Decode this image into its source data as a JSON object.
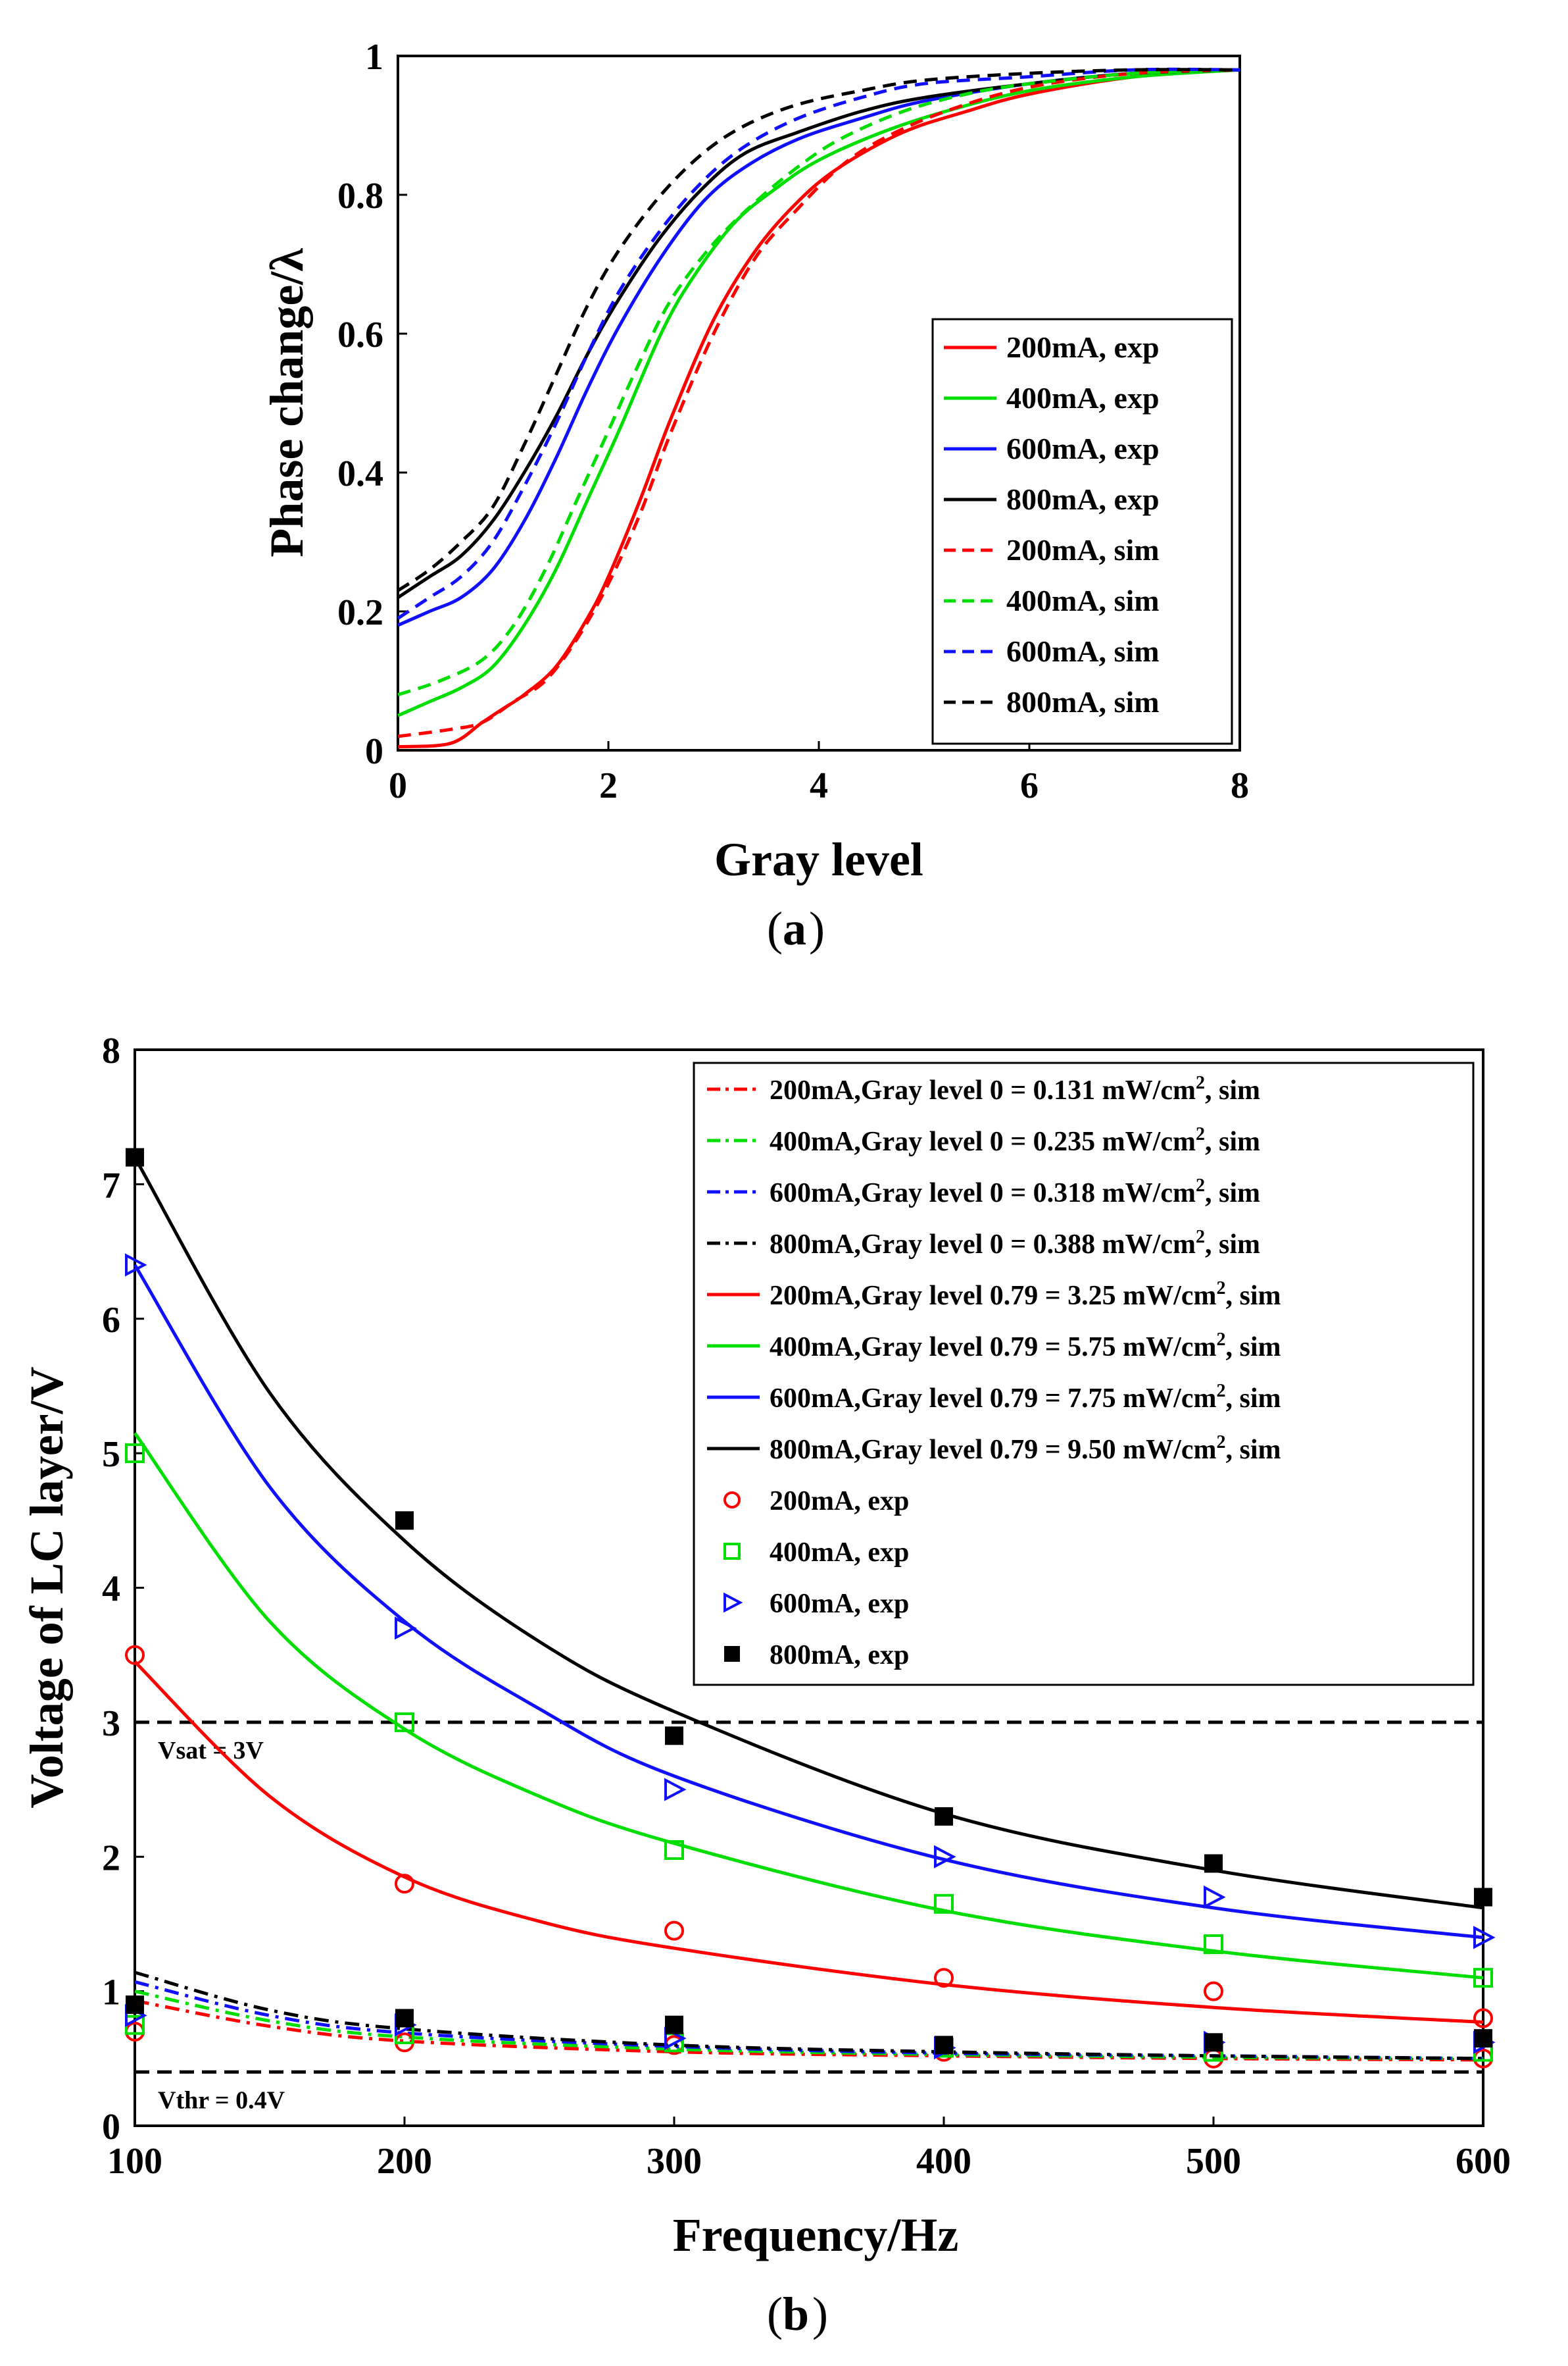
{
  "chart_data": [
    {
      "id": "a",
      "type": "line",
      "caption": "(a)",
      "caption_letter": "a",
      "xlabel": "Gray level",
      "ylabel": "Phase change/λ",
      "xlim": [
        0,
        8
      ],
      "ylim": [
        0,
        1
      ],
      "xticks": [
        "0",
        "2",
        "4",
        "6",
        "8"
      ],
      "yticks": [
        "0",
        "0.2",
        "0.4",
        "0.6",
        "0.8",
        "1"
      ],
      "legend_position": "lower-right",
      "series": [
        {
          "name": "200mA, exp",
          "color": "#ff0000",
          "style": "solid",
          "x": [
            0,
            0.5,
            0.8,
            1.0,
            1.2,
            1.5,
            1.8,
            2.0,
            2.3,
            2.6,
            3.0,
            3.4,
            3.8,
            4.2,
            4.8,
            5.4,
            6.0,
            7.0,
            8.0
          ],
          "y": [
            0.005,
            0.01,
            0.04,
            0.06,
            0.08,
            0.12,
            0.19,
            0.25,
            0.36,
            0.48,
            0.62,
            0.72,
            0.79,
            0.84,
            0.89,
            0.92,
            0.945,
            0.97,
            0.98
          ]
        },
        {
          "name": "400mA, exp",
          "color": "#00dd00",
          "style": "solid",
          "x": [
            0,
            0.3,
            0.6,
            0.9,
            1.2,
            1.5,
            1.8,
            2.1,
            2.5,
            2.8,
            3.2,
            3.6,
            4.0,
            4.6,
            5.2,
            6.0,
            7.0,
            8.0
          ],
          "y": [
            0.05,
            0.07,
            0.09,
            0.12,
            0.18,
            0.26,
            0.36,
            0.46,
            0.6,
            0.68,
            0.76,
            0.81,
            0.85,
            0.89,
            0.92,
            0.95,
            0.97,
            0.98
          ]
        },
        {
          "name": "600mA, exp",
          "color": "#1010ff",
          "style": "solid",
          "x": [
            0,
            0.3,
            0.6,
            0.9,
            1.2,
            1.5,
            1.8,
            2.1,
            2.5,
            2.9,
            3.3,
            3.8,
            4.4,
            5.0,
            6.0,
            7.0,
            8.0
          ],
          "y": [
            0.18,
            0.2,
            0.22,
            0.26,
            0.33,
            0.42,
            0.52,
            0.61,
            0.71,
            0.79,
            0.84,
            0.88,
            0.91,
            0.935,
            0.96,
            0.975,
            0.98
          ]
        },
        {
          "name": "800mA, exp",
          "color": "#000000",
          "style": "solid",
          "x": [
            0,
            0.3,
            0.6,
            0.9,
            1.2,
            1.5,
            1.8,
            2.1,
            2.5,
            2.9,
            3.3,
            3.8,
            4.4,
            5.0,
            6.0,
            7.0,
            8.0
          ],
          "y": [
            0.22,
            0.25,
            0.28,
            0.33,
            0.4,
            0.48,
            0.57,
            0.65,
            0.74,
            0.81,
            0.86,
            0.89,
            0.92,
            0.94,
            0.96,
            0.975,
            0.98
          ]
        },
        {
          "name": "200mA, sim",
          "color": "#ff0000",
          "style": "dashed",
          "x": [
            0,
            0.5,
            0.8,
            1.1,
            1.4,
            1.7,
            2.0,
            2.3,
            2.6,
            3.0,
            3.4,
            3.8,
            4.2,
            4.6,
            5.2,
            6.0,
            7.0,
            8.0
          ],
          "y": [
            0.02,
            0.03,
            0.04,
            0.07,
            0.1,
            0.16,
            0.24,
            0.34,
            0.46,
            0.6,
            0.71,
            0.78,
            0.84,
            0.88,
            0.92,
            0.955,
            0.975,
            0.98
          ]
        },
        {
          "name": "400mA, sim",
          "color": "#00dd00",
          "style": "dashed",
          "x": [
            0,
            0.4,
            0.8,
            1.1,
            1.4,
            1.7,
            2.0,
            2.3,
            2.6,
            3.0,
            3.4,
            3.8,
            4.2,
            4.8,
            5.4,
            6.0,
            7.0,
            8.0
          ],
          "y": [
            0.08,
            0.1,
            0.13,
            0.18,
            0.26,
            0.36,
            0.46,
            0.56,
            0.65,
            0.73,
            0.79,
            0.84,
            0.88,
            0.92,
            0.945,
            0.96,
            0.975,
            0.98
          ]
        },
        {
          "name": "600mA, sim",
          "color": "#1010ff",
          "style": "dashed",
          "x": [
            0,
            0.3,
            0.6,
            0.9,
            1.2,
            1.5,
            1.8,
            2.1,
            2.5,
            2.9,
            3.3,
            3.8,
            4.4,
            5.0,
            6.0,
            7.0,
            8.0
          ],
          "y": [
            0.19,
            0.22,
            0.25,
            0.3,
            0.38,
            0.47,
            0.57,
            0.66,
            0.75,
            0.82,
            0.87,
            0.91,
            0.94,
            0.96,
            0.97,
            0.98,
            0.98
          ]
        },
        {
          "name": "800mA, sim",
          "color": "#000000",
          "style": "dashed",
          "x": [
            0,
            0.3,
            0.6,
            0.9,
            1.2,
            1.5,
            1.8,
            2.1,
            2.5,
            2.9,
            3.3,
            3.8,
            4.4,
            5.0,
            6.0,
            7.0,
            8.0
          ],
          "y": [
            0.23,
            0.26,
            0.3,
            0.35,
            0.44,
            0.54,
            0.64,
            0.72,
            0.8,
            0.86,
            0.9,
            0.93,
            0.95,
            0.965,
            0.975,
            0.98,
            0.98
          ]
        }
      ]
    },
    {
      "id": "b",
      "type": "line",
      "caption": "(b)",
      "caption_letter": "b",
      "xlabel": "Frequency/Hz",
      "ylabel": "Voltage of LC layer/V",
      "xlim": [
        100,
        600
      ],
      "ylim": [
        0,
        8
      ],
      "xticks": [
        "100",
        "200",
        "300",
        "400",
        "500",
        "600"
      ],
      "yticks": [
        "0",
        "1",
        "2",
        "3",
        "4",
        "5",
        "6",
        "7",
        "8"
      ],
      "legend_position": "top-right",
      "reference_lines": [
        {
          "y": 3.0,
          "label": "Vsat = 3V",
          "style": "dashed"
        },
        {
          "y": 0.4,
          "label": "Vthr = 0.4V",
          "style": "dashed"
        }
      ],
      "series": [
        {
          "name": "200mA,Gray level 0 = 0.131 mW/cm",
          "sup": "2",
          "suffix": ", sim",
          "color": "#ff0000",
          "style": "dashdot",
          "x": [
            100,
            150,
            200,
            300,
            400,
            500,
            600
          ],
          "y": [
            0.93,
            0.74,
            0.63,
            0.55,
            0.52,
            0.5,
            0.49
          ]
        },
        {
          "name": "400mA,Gray level 0 = 0.235 mW/cm",
          "sup": "2",
          "suffix": ", sim",
          "color": "#00dd00",
          "style": "dashdot",
          "x": [
            100,
            150,
            200,
            300,
            400,
            500,
            600
          ],
          "y": [
            1.0,
            0.78,
            0.66,
            0.57,
            0.53,
            0.51,
            0.5
          ]
        },
        {
          "name": "600mA,Gray level 0 = 0.318 mW/cm",
          "sup": "2",
          "suffix": ", sim",
          "color": "#1010ff",
          "style": "dashdot",
          "x": [
            100,
            150,
            200,
            300,
            400,
            500,
            600
          ],
          "y": [
            1.07,
            0.82,
            0.69,
            0.59,
            0.54,
            0.52,
            0.5
          ]
        },
        {
          "name": "800mA,Gray level 0 = 0.388 mW/cm",
          "sup": "2",
          "suffix": ", sim",
          "color": "#000000",
          "style": "dashdot",
          "x": [
            100,
            150,
            200,
            300,
            400,
            500,
            600
          ],
          "y": [
            1.14,
            0.86,
            0.72,
            0.6,
            0.55,
            0.52,
            0.5
          ]
        },
        {
          "name": "200mA,Gray level 0.79 = 3.25 mW/cm",
          "sup": "2",
          "suffix": ", sim",
          "color": "#ff0000",
          "style": "solid",
          "x": [
            100,
            150,
            200,
            250,
            300,
            400,
            500,
            600
          ],
          "y": [
            3.45,
            2.45,
            1.85,
            1.52,
            1.32,
            1.05,
            0.88,
            0.77
          ]
        },
        {
          "name": "400mA,Gray level 0.79 = 5.75 mW/cm",
          "sup": "2",
          "suffix": ", sim",
          "color": "#00dd00",
          "style": "solid",
          "x": [
            100,
            150,
            200,
            250,
            300,
            400,
            500,
            600
          ],
          "y": [
            5.15,
            3.75,
            2.95,
            2.45,
            2.1,
            1.6,
            1.3,
            1.1
          ]
        },
        {
          "name": "600mA,Gray level 0.79 = 7.75 mW/cm",
          "sup": "2",
          "suffix": ", sim",
          "color": "#1010ff",
          "style": "solid",
          "x": [
            100,
            150,
            200,
            250,
            300,
            400,
            500,
            600
          ],
          "y": [
            6.4,
            4.75,
            3.75,
            3.1,
            2.6,
            1.98,
            1.62,
            1.4
          ]
        },
        {
          "name": "800mA,Gray level 0.79 = 9.50 mW/cm",
          "sup": "2",
          "suffix": ", sim",
          "color": "#000000",
          "style": "solid",
          "x": [
            100,
            150,
            200,
            250,
            300,
            400,
            500,
            600
          ],
          "y": [
            7.2,
            5.45,
            4.35,
            3.6,
            3.08,
            2.32,
            1.9,
            1.62
          ]
        },
        {
          "name": "200mA, exp",
          "color": "#ff0000",
          "marker": "circle",
          "x": [
            100,
            200,
            300,
            400,
            500,
            600,
            100,
            200,
            300,
            400,
            500,
            600
          ],
          "y": [
            3.5,
            1.8,
            1.45,
            1.1,
            1.0,
            0.8,
            0.7,
            0.62,
            0.6,
            0.55,
            0.5,
            0.5
          ]
        },
        {
          "name": "400mA, exp",
          "color": "#00dd00",
          "marker": "square",
          "x": [
            100,
            200,
            300,
            400,
            500,
            600,
            100,
            200,
            300,
            400,
            500,
            600
          ],
          "y": [
            5.0,
            3.0,
            2.05,
            1.65,
            1.35,
            1.1,
            0.75,
            0.68,
            0.62,
            0.58,
            0.55,
            0.55
          ]
        },
        {
          "name": "600mA, exp",
          "color": "#1010ff",
          "marker": "triangle-right",
          "x": [
            100,
            200,
            300,
            400,
            500,
            600,
            100,
            200,
            300,
            400,
            500,
            600
          ],
          "y": [
            6.4,
            3.7,
            2.5,
            2.0,
            1.7,
            1.4,
            0.82,
            0.75,
            0.65,
            0.58,
            0.62,
            0.62
          ]
        },
        {
          "name": "800mA, exp",
          "color": "#000000",
          "marker": "filled-square",
          "x": [
            100,
            200,
            300,
            400,
            500,
            600,
            100,
            200,
            300,
            400,
            500,
            600
          ],
          "y": [
            7.2,
            4.5,
            2.9,
            2.3,
            1.95,
            1.7,
            0.9,
            0.8,
            0.75,
            0.6,
            0.62,
            0.65
          ]
        }
      ]
    }
  ]
}
